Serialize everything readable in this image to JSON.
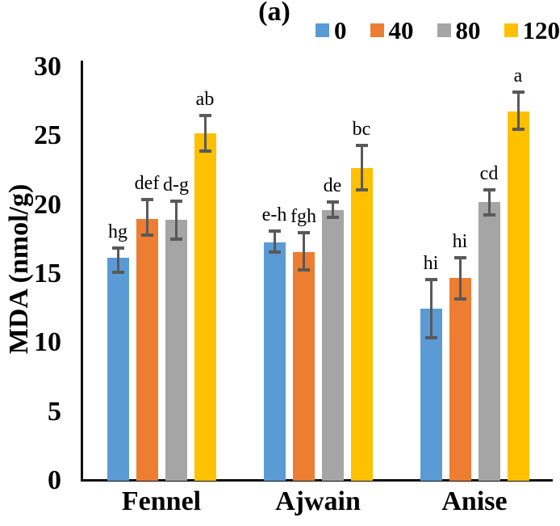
{
  "figure_label": "(a)",
  "chart_data": {
    "type": "bar",
    "title": "(a)",
    "xlabel": "",
    "ylabel": "MDA (nmol/g)",
    "ylim": [
      0,
      30
    ],
    "yticks": [
      0,
      5,
      10,
      15,
      20,
      25,
      30
    ],
    "grid": false,
    "legend_position": "top-right",
    "legend_labels": [
      "0",
      "40",
      "80",
      "120"
    ],
    "categories": [
      "Fennel",
      "Ajwain",
      "Anise"
    ],
    "series": [
      {
        "name": "0",
        "color": "#5B9BD5",
        "values": [
          16.2,
          17.3,
          12.5
        ],
        "error_high": [
          16.9,
          18.1,
          14.6
        ],
        "error_low": [
          15.1,
          16.6,
          10.4
        ],
        "sig_letters": [
          "hg",
          "e-h",
          "hi"
        ]
      },
      {
        "name": "40",
        "color": "#ED7D31",
        "values": [
          19.0,
          16.6,
          14.7
        ],
        "error_high": [
          20.4,
          18.0,
          16.2
        ],
        "error_low": [
          17.8,
          15.3,
          13.2
        ],
        "sig_letters": [
          "def",
          "fgh",
          "hi"
        ]
      },
      {
        "name": "80",
        "color": "#A5A5A5",
        "values": [
          18.9,
          19.6,
          20.2
        ],
        "error_high": [
          20.3,
          20.2,
          21.1
        ],
        "error_low": [
          17.5,
          19.1,
          19.3
        ],
        "sig_letters": [
          "d-g",
          "de",
          "cd"
        ]
      },
      {
        "name": "120",
        "color": "#FFC000",
        "values": [
          25.2,
          22.7,
          26.8
        ],
        "error_high": [
          26.5,
          24.3,
          28.2
        ],
        "error_low": [
          23.9,
          21.1,
          25.5
        ],
        "sig_letters": [
          "ab",
          "bc",
          "a"
        ]
      }
    ],
    "error_bar_color": "#595959",
    "axis_color": "#0d0d0d"
  }
}
